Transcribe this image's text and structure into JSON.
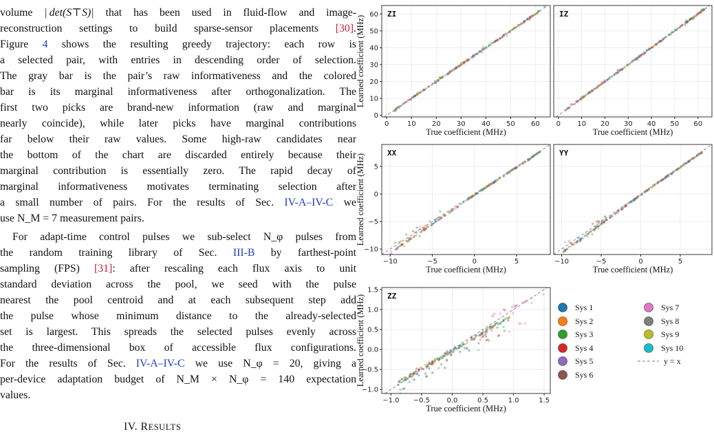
{
  "text": {
    "l1_pre": "volume ",
    "l1_math": "| det(S⊤S)|",
    "l1_post": " that has been used in fluid-flow and image-",
    "l2_pre": "reconstruction settings to build sparse-sensor placements ",
    "l2_ref": "[30]",
    "l2_post": ".",
    "l3_pre": "Figure ",
    "l3_ref": "4",
    "l3_post": " shows the resulting greedy trajectory: each row is",
    "l4": "a selected pair, with entries in descending order of selection.",
    "l5": "The gray bar is the pair’s raw informativeness and the colored",
    "l6": "bar is its marginal informativeness after orthogonalization. The",
    "l7": "first two picks are brand-new information (raw and marginal",
    "l8": "nearly coincide), while later picks have marginal contributions",
    "l9": "far below their raw values. Some high-raw candidates near",
    "l10": "the bottom of the chart are discarded entirely because their",
    "l11": "marginal contribution is essentially zero. The rapid decay of",
    "l12": "marginal informativeness motivates terminating selection after",
    "l13_pre": "a small number of pairs. For the results of Sec. ",
    "l13_ref": "IV-A–IV-C",
    "l13_post": " we",
    "l14": "use N_M = 7 measurement pairs.",
    "l15": "For adapt-time control pulses we sub-select N_φ pulses from",
    "l16_pre": "the random training library of Sec. ",
    "l16_ref": "III-B",
    "l16_post": " by farthest-point",
    "l17_pre": "sampling (FPS) ",
    "l17_ref": "[31]",
    "l17_post": ": after rescaling each flux axis to unit",
    "l18": "standard deviation across the pool, we seed with the pulse",
    "l19": "nearest the pool centroid and at each subsequent step add",
    "l20": "the pulse whose minimum distance to the already-selected",
    "l21": "set is largest. This spreads the selected pulses evenly across",
    "l22": "the three-dimensional box of accessible flux configurations.",
    "l23_pre": "For the results of Sec. ",
    "l23_ref": "IV-A–IV-C",
    "l23_post": " we use N_φ = 20, giving a",
    "l24": "per-device adaptation budget of N_M × N_φ = 140 expectation",
    "l25": "values.",
    "heading_num": "IV. R",
    "heading_rest": "ESULTS"
  },
  "colors": {
    "ref": "#c81e3c",
    "section_link": "#1f3cc8",
    "series": [
      "#1f77b4",
      "#ff7f0e",
      "#2ca02c",
      "#d62728",
      "#9467bd",
      "#8c564b",
      "#e377c2",
      "#7f7f7f",
      "#bcbd22",
      "#17becf"
    ]
  },
  "figure": {
    "ylabel": "Learned coefficient (MHz)",
    "xlabel": "True coefficient (MHz)",
    "legend": [
      "Sys 1",
      "Sys 2",
      "Sys 3",
      "Sys 4",
      "Sys 5",
      "Sys 6",
      "Sys 7",
      "Sys 8",
      "Sys 9",
      "Sys 10",
      "y = x"
    ]
  },
  "chart_data": [
    {
      "type": "scatter",
      "title": "ZI",
      "xlabel": "True coefficient (MHz)",
      "ylabel": "Learned coefficient (MHz)",
      "xlim": [
        -2,
        66
      ],
      "ylim": [
        -1,
        65
      ],
      "xticks": [
        0,
        10,
        20,
        30,
        40,
        50,
        60
      ],
      "yticks": [
        0,
        10,
        20,
        30,
        40,
        50,
        60
      ],
      "x_range_data": [
        3,
        64
      ],
      "trend": "points lie along y = x",
      "grid": true
    },
    {
      "type": "scatter",
      "title": "IZ",
      "xlabel": "True coefficient (MHz)",
      "ylabel": "",
      "xlim": [
        -2,
        66
      ],
      "ylim": [
        -1,
        65
      ],
      "xticks": [
        0,
        10,
        20,
        30,
        40,
        50,
        60
      ],
      "yticks": [],
      "x_range_data": [
        3,
        64
      ],
      "trend": "points lie along y = x",
      "grid": true
    },
    {
      "type": "scatter",
      "title": "XX",
      "xlabel": "True coefficient (MHz)",
      "ylabel": "Learned coefficient (MHz)",
      "xlim": [
        -11,
        9
      ],
      "ylim": [
        -11,
        9
      ],
      "xticks": [
        -10,
        -5,
        0,
        5
      ],
      "yticks": [
        -10,
        -5,
        0,
        5
      ],
      "x_range_data": [
        -10,
        7.8
      ],
      "trend": "near y = x, learned slightly below for negative values",
      "grid": true
    },
    {
      "type": "scatter",
      "title": "YY",
      "xlabel": "True coefficient (MHz)",
      "ylabel": "",
      "xlim": [
        -11,
        9
      ],
      "ylim": [
        -11,
        9
      ],
      "xticks": [
        -10,
        -5,
        0,
        5
      ],
      "yticks": [],
      "x_range_data": [
        -10,
        7.8
      ],
      "trend": "near y = x, learned slightly below for negative values",
      "grid": true
    },
    {
      "type": "scatter",
      "title": "ZZ",
      "xlabel": "True coefficient (MHz)",
      "ylabel": "Learned coefficient (MHz)",
      "xlim": [
        -1.15,
        1.6
      ],
      "ylim": [
        -1.1,
        1.55
      ],
      "xticks": [
        -1.0,
        -0.5,
        0.0,
        0.5,
        1.0,
        1.5
      ],
      "yticks": [
        -1.0,
        -0.5,
        0.0,
        0.5,
        1.0,
        1.5
      ],
      "x_range_data": [
        -0.9,
        1.5
      ],
      "trend": "points below y = x for large values; Sys 7 saturates near 1.35",
      "grid": true
    }
  ]
}
